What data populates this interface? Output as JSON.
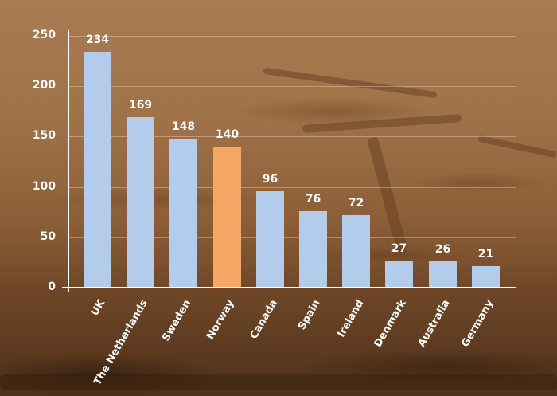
{
  "chart_data": {
    "type": "bar",
    "title": "",
    "xlabel": "",
    "ylabel": "",
    "ylim": [
      0,
      250
    ],
    "yticks": [
      0,
      50,
      100,
      150,
      200,
      250
    ],
    "grid": true,
    "legend": null,
    "categories": [
      "UK",
      "The Netherlands",
      "Sweden",
      "Norway",
      "Canada",
      "Spain",
      "Ireland",
      "Denmark",
      "Australia",
      "Germany"
    ],
    "values": [
      234,
      169,
      148,
      140,
      96,
      76,
      72,
      27,
      26,
      21
    ],
    "value_labels": [
      "234",
      "169",
      "148",
      "140",
      "96",
      "76",
      "72",
      "27",
      "26",
      "21"
    ],
    "highlight": "Norway",
    "colors": {
      "bar": "#b4cceb",
      "highlight_bar": "#f5a866",
      "axis": "#ffffff",
      "text": "#ffffff"
    }
  },
  "axis": {
    "tick_labels": [
      "0",
      "50",
      "100",
      "150",
      "200",
      "250"
    ]
  }
}
